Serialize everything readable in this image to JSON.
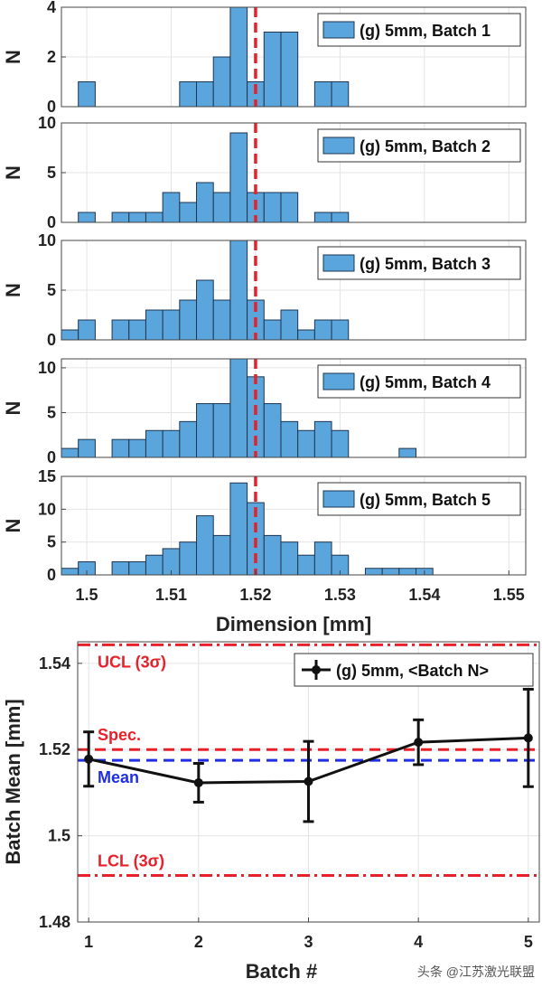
{
  "chart_data": [
    {
      "type": "bar",
      "title": "",
      "legend": "(g) 5mm, Batch 1",
      "ylabel": "N",
      "xlabel": "",
      "xlim": [
        1.497,
        1.552
      ],
      "ylim": [
        0,
        4
      ],
      "yticks": [
        0,
        2,
        4
      ],
      "bin_width": 0.002,
      "bin_start": 1.497,
      "values": [
        0,
        1,
        0,
        0,
        0,
        0,
        0,
        1,
        1,
        2,
        4,
        1,
        3,
        3,
        0,
        1,
        1
      ],
      "spec_line": 1.52
    },
    {
      "type": "bar",
      "title": "",
      "legend": "(g) 5mm, Batch 2",
      "ylabel": "N",
      "xlabel": "",
      "xlim": [
        1.497,
        1.552
      ],
      "ylim": [
        0,
        10
      ],
      "yticks": [
        0,
        5,
        10
      ],
      "bin_width": 0.002,
      "bin_start": 1.497,
      "values": [
        0,
        1,
        0,
        1,
        1,
        1,
        3,
        2,
        4,
        3,
        9,
        3,
        3,
        3,
        0,
        1,
        1
      ],
      "spec_line": 1.52
    },
    {
      "type": "bar",
      "title": "",
      "legend": "(g) 5mm, Batch 3",
      "ylabel": "N",
      "xlabel": "",
      "xlim": [
        1.497,
        1.552
      ],
      "ylim": [
        0,
        10
      ],
      "yticks": [
        0,
        5,
        10
      ],
      "bin_width": 0.002,
      "bin_start": 1.497,
      "values": [
        1,
        2,
        0,
        2,
        2,
        3,
        3,
        4,
        6,
        4,
        10,
        4,
        2,
        3,
        1,
        2,
        2
      ],
      "spec_line": 1.52
    },
    {
      "type": "bar",
      "title": "",
      "legend": "(g) 5mm, Batch 4",
      "ylabel": "N",
      "xlabel": "",
      "xlim": [
        1.497,
        1.552
      ],
      "ylim": [
        0,
        11
      ],
      "yticks": [
        0,
        5,
        10
      ],
      "bin_width": 0.002,
      "bin_start": 1.497,
      "values": [
        1,
        2,
        0,
        2,
        2,
        3,
        3,
        4,
        6,
        6,
        11,
        9,
        6,
        4,
        3,
        4,
        3,
        0,
        0,
        0,
        1
      ],
      "spec_line": 1.52
    },
    {
      "type": "bar",
      "title": "",
      "legend": "(g) 5mm, Batch 5",
      "ylabel": "N",
      "xlabel": "Dimension [mm]",
      "xlim": [
        1.497,
        1.552
      ],
      "ylim": [
        0,
        15
      ],
      "yticks": [
        0,
        5,
        10,
        15
      ],
      "xticks": [
        "1.5",
        "1.51",
        "1.52",
        "1.53",
        "1.54",
        "1.55"
      ],
      "bin_width": 0.002,
      "bin_start": 1.497,
      "values": [
        1,
        2,
        0,
        2,
        2,
        3,
        4,
        5,
        9,
        6,
        14,
        11,
        6,
        5,
        3,
        5,
        3,
        0,
        1,
        1,
        1,
        1
      ],
      "spec_line": 1.52
    },
    {
      "type": "line",
      "title": "",
      "legend": "(g) 5mm, <Batch N>",
      "xlabel": "Batch #",
      "ylabel": "Batch Mean [mm]",
      "xlim": [
        0.9,
        5.1
      ],
      "ylim": [
        1.48,
        1.545
      ],
      "xticks": [
        "1",
        "2",
        "3",
        "4",
        "5"
      ],
      "yticks": [
        "1.48",
        "1.5",
        "1.52",
        "1.54"
      ],
      "x": [
        1,
        2,
        3,
        4,
        5
      ],
      "y": [
        1.5178,
        1.5123,
        1.5126,
        1.5217,
        1.5227
      ],
      "error": [
        0.0063,
        0.0045,
        0.0093,
        0.0052,
        0.0113
      ],
      "reference_lines": [
        {
          "label": "UCL (3σ)",
          "value": 1.5443,
          "color": "#e8202a",
          "style": "dashdot"
        },
        {
          "label": "Spec.",
          "value": 1.52,
          "color": "#e8202a",
          "style": "dashed"
        },
        {
          "label": "Mean",
          "value": 1.5175,
          "color": "#1f2ee0",
          "style": "dashed"
        },
        {
          "label": "LCL (3σ)",
          "value": 1.4908,
          "color": "#e8202a",
          "style": "dashdot"
        }
      ]
    }
  ],
  "colors": {
    "bar_fill": "#5aa5db",
    "bar_edge": "#1f3550",
    "spec_red": "#e8202a",
    "mean_blue": "#1f2ee0",
    "grid": "#e4e4e4"
  },
  "watermark": "头条 @江苏激光联盟"
}
